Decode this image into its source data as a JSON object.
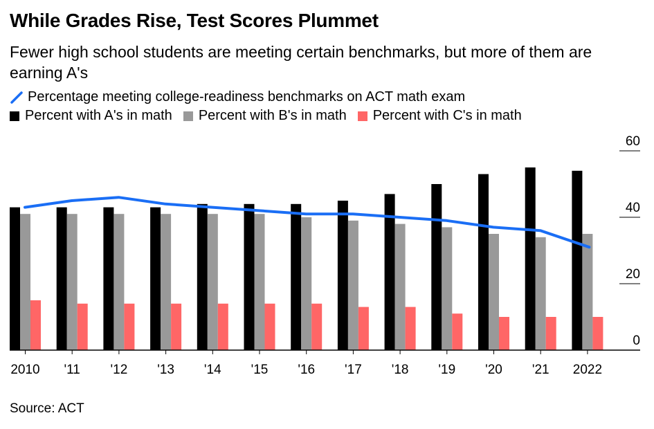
{
  "header": {
    "title": "While Grades Rise, Test Scores Plummet",
    "subtitle": "Fewer high school students are meeting certain benchmarks, but more of them are earning A's"
  },
  "legend": {
    "line_label": "Percentage meeting college-readiness benchmarks on ACT math exam",
    "bar_labels": [
      "Percent with A's in math",
      "Percent with B's in math",
      "Percent with C's in math"
    ]
  },
  "source": "Source: ACT",
  "colors": {
    "a": "#000000",
    "b": "#999999",
    "c": "#ff6666",
    "line": "#1a6ef5",
    "grid": "#000000"
  },
  "chart_data": {
    "type": "bar",
    "title": "While Grades Rise, Test Scores Plummet",
    "categories": [
      "2010",
      "'11",
      "'12",
      "'13",
      "'14",
      "'15",
      "'16",
      "'17",
      "'18",
      "'19",
      "'20",
      "'21",
      "2022"
    ],
    "series": [
      {
        "name": "Percent with A's in math",
        "type": "bar",
        "values": [
          43,
          43,
          43,
          43,
          44,
          44,
          44,
          45,
          47,
          50,
          53,
          55,
          54
        ]
      },
      {
        "name": "Percent with B's in math",
        "type": "bar",
        "values": [
          41,
          41,
          41,
          41,
          41,
          41,
          40,
          39,
          38,
          37,
          35,
          34,
          35
        ]
      },
      {
        "name": "Percent with C's in math",
        "type": "bar",
        "values": [
          15,
          14,
          14,
          14,
          14,
          14,
          14,
          13,
          13,
          11,
          10,
          10,
          10
        ]
      },
      {
        "name": "Percentage meeting college-readiness benchmarks on ACT math exam",
        "type": "line",
        "values": [
          43,
          45,
          46,
          44,
          43,
          42,
          41,
          41,
          40,
          39,
          37,
          36,
          31
        ]
      }
    ],
    "ylim": [
      0,
      60
    ],
    "yticks": [
      0,
      20,
      40,
      60
    ],
    "ytick_labels": [
      "0",
      "20",
      "40",
      "60"
    ],
    "xlabel": "",
    "ylabel": "",
    "legend_position": "top-left",
    "y_axis_position": "right"
  }
}
